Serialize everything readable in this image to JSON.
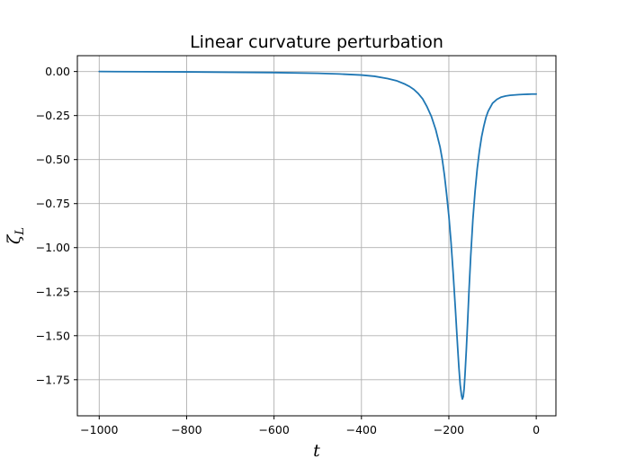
{
  "chart_data": {
    "type": "line",
    "title": "Linear curvature perturbation",
    "xlabel": "t",
    "ylabel_symbol": "ζ",
    "ylabel_subscript": "L",
    "xlim": [
      -1050,
      45
    ],
    "ylim": [
      -1.955,
      0.09
    ],
    "grid": true,
    "xticks": [
      -1000,
      -800,
      -600,
      -400,
      -200,
      0
    ],
    "xtick_labels": [
      "−1000",
      "−800",
      "−600",
      "−400",
      "−200",
      "0"
    ],
    "yticks": [
      0.0,
      -0.25,
      -0.5,
      -0.75,
      -1.0,
      -1.25,
      -1.5,
      -1.75
    ],
    "ytick_labels": [
      "0.00",
      "−0.25",
      "−0.50",
      "−0.75",
      "−1.00",
      "−1.25",
      "−1.50",
      "−1.75"
    ],
    "series": [
      {
        "color": "#1f77b4",
        "x": [
          -1000,
          -900,
          -800,
          -700,
          -600,
          -500,
          -450,
          -400,
          -370,
          -340,
          -320,
          -300,
          -290,
          -280,
          -270,
          -260,
          -250,
          -240,
          -230,
          -220,
          -215,
          -210,
          -205,
          -200,
          -195,
          -190,
          -185,
          -180,
          -177,
          -174,
          -171,
          -169,
          -167,
          -165,
          -163,
          -160,
          -157,
          -154,
          -150,
          -145,
          -140,
          -135,
          -130,
          -125,
          -120,
          -115,
          -110,
          -100,
          -90,
          -80,
          -70,
          -60,
          -50,
          -40,
          -30,
          -20,
          -10,
          0
        ],
        "y": [
          0.0,
          -0.001,
          -0.002,
          -0.004,
          -0.006,
          -0.01,
          -0.014,
          -0.02,
          -0.027,
          -0.04,
          -0.052,
          -0.072,
          -0.085,
          -0.102,
          -0.125,
          -0.155,
          -0.2,
          -0.255,
          -0.33,
          -0.43,
          -0.5,
          -0.59,
          -0.7,
          -0.82,
          -0.97,
          -1.15,
          -1.35,
          -1.56,
          -1.68,
          -1.78,
          -1.84,
          -1.86,
          -1.845,
          -1.8,
          -1.72,
          -1.58,
          -1.42,
          -1.25,
          -1.05,
          -0.84,
          -0.68,
          -0.55,
          -0.45,
          -0.37,
          -0.31,
          -0.26,
          -0.225,
          -0.18,
          -0.158,
          -0.145,
          -0.139,
          -0.135,
          -0.133,
          -0.131,
          -0.13,
          -0.129,
          -0.128,
          -0.128
        ]
      }
    ]
  }
}
